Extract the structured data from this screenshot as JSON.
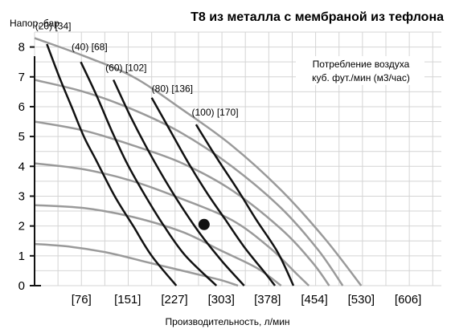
{
  "chart_data": {
    "type": "line",
    "title": "T8 из металла с мембраной из тефлона",
    "ylabel": "Напор, бар",
    "xlabel": "Производительность, л/мин",
    "legend_text": [
      "Потребление воздуха",
      "куб. фут./мин (м3/час)"
    ],
    "legend_position": "top-right",
    "grid": true,
    "ylim": [
      0,
      8.5
    ],
    "xlim": [
      0,
      660
    ],
    "y_ticks": [
      "0",
      "1",
      "2",
      "3",
      "4",
      "5",
      "6",
      "7",
      "8"
    ],
    "x_ticks": [
      {
        "value": 76,
        "label": "[76]"
      },
      {
        "value": 151,
        "label": "[151]"
      },
      {
        "value": 227,
        "label": "[227]"
      },
      {
        "value": 303,
        "label": "[303]"
      },
      {
        "value": 378,
        "label": "[378]"
      },
      {
        "value": 454,
        "label": "[454]"
      },
      {
        "value": 530,
        "label": "[530]"
      },
      {
        "value": 606,
        "label": "[606]"
      }
    ],
    "air_consumption_curves": [
      {
        "label": "(20) [34]",
        "label_x": 1,
        "label_y": 8.6,
        "points": [
          [
            20,
            8.1
          ],
          [
            40,
            7.0
          ],
          [
            60,
            6.0
          ],
          [
            80,
            5.0
          ],
          [
            100,
            4.2
          ],
          [
            130,
            3.0
          ],
          [
            160,
            2.0
          ],
          [
            190,
            1.0
          ],
          [
            230,
            0.0
          ]
        ]
      },
      {
        "label": "(40) [68]",
        "label_x": 60,
        "label_y": 7.9,
        "points": [
          [
            75,
            7.5
          ],
          [
            100,
            6.4
          ],
          [
            125,
            5.2
          ],
          [
            150,
            4.1
          ],
          [
            180,
            3.0
          ],
          [
            210,
            2.0
          ],
          [
            245,
            1.0
          ],
          [
            295,
            0.0
          ]
        ]
      },
      {
        "label": "(60) [102]",
        "label_x": 115,
        "label_y": 7.2,
        "points": [
          [
            128,
            6.9
          ],
          [
            155,
            5.7
          ],
          [
            180,
            4.7
          ],
          [
            210,
            3.6
          ],
          [
            240,
            2.6
          ],
          [
            270,
            1.7
          ],
          [
            305,
            0.8
          ],
          [
            340,
            0.0
          ]
        ]
      },
      {
        "label": "(80) [136]",
        "label_x": 190,
        "label_y": 6.5,
        "points": [
          [
            190,
            6.3
          ],
          [
            220,
            5.2
          ],
          [
            250,
            4.1
          ],
          [
            280,
            3.1
          ],
          [
            310,
            2.2
          ],
          [
            340,
            1.3
          ],
          [
            375,
            0.4
          ],
          [
            390,
            0.0
          ]
        ]
      },
      {
        "label": "(100) [170]",
        "label_x": 255,
        "label_y": 5.7,
        "points": [
          [
            262,
            5.4
          ],
          [
            295,
            4.3
          ],
          [
            330,
            3.2
          ],
          [
            360,
            2.2
          ],
          [
            395,
            1.1
          ],
          [
            420,
            0.0
          ]
        ]
      }
    ],
    "pressure_curves": [
      {
        "points": [
          [
            0,
            8.3
          ],
          [
            80,
            7.7
          ],
          [
            160,
            7.0
          ],
          [
            240,
            5.9
          ],
          [
            320,
            4.7
          ],
          [
            400,
            3.2
          ],
          [
            470,
            1.6
          ],
          [
            530,
            0.0
          ]
        ]
      },
      {
        "points": [
          [
            0,
            6.9
          ],
          [
            80,
            6.5
          ],
          [
            160,
            5.9
          ],
          [
            240,
            5.1
          ],
          [
            320,
            4.0
          ],
          [
            400,
            2.6
          ],
          [
            460,
            1.2
          ],
          [
            500,
            0.0
          ]
        ]
      },
      {
        "points": [
          [
            0,
            5.5
          ],
          [
            80,
            5.2
          ],
          [
            160,
            4.7
          ],
          [
            240,
            4.1
          ],
          [
            320,
            3.2
          ],
          [
            400,
            1.9
          ],
          [
            450,
            0.8
          ],
          [
            478,
            0.0
          ]
        ]
      },
      {
        "points": [
          [
            0,
            4.1
          ],
          [
            80,
            3.9
          ],
          [
            160,
            3.5
          ],
          [
            240,
            2.9
          ],
          [
            320,
            2.2
          ],
          [
            380,
            1.3
          ],
          [
            425,
            0.4
          ],
          [
            445,
            0.0
          ]
        ]
      },
      {
        "points": [
          [
            0,
            2.7
          ],
          [
            80,
            2.6
          ],
          [
            160,
            2.3
          ],
          [
            240,
            1.8
          ],
          [
            300,
            1.2
          ],
          [
            360,
            0.6
          ],
          [
            400,
            0.0
          ]
        ]
      },
      {
        "points": [
          [
            0,
            1.4
          ],
          [
            60,
            1.3
          ],
          [
            120,
            1.1
          ],
          [
            180,
            0.8
          ],
          [
            240,
            0.5
          ],
          [
            300,
            0.2
          ],
          [
            330,
            0.0
          ]
        ]
      }
    ],
    "highlight_point": {
      "x": 275,
      "y": 2.05
    }
  }
}
